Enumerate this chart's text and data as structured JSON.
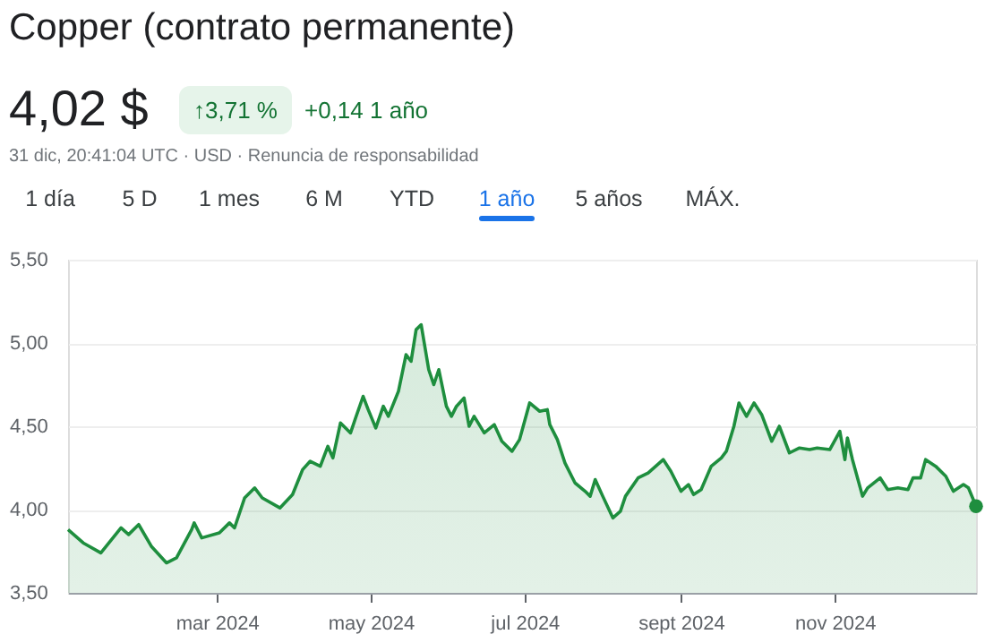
{
  "chart_data": {
    "type": "area",
    "title": "Copper (contrato permanente)",
    "annotations": [
      "4,02 $",
      "↑3,71 %",
      "+0,14 1 año",
      "31 dic, 20:41:04 UTC · USD · Renuncia de responsabilidad",
      "1 día",
      "5 D",
      "1 mes",
      "6 M",
      "YTD",
      "1 año",
      "5 años",
      "MÁX."
    ],
    "x": [
      "2024-01-02",
      "2024-01-08",
      "2024-01-15",
      "2024-01-23",
      "2024-01-26",
      "2024-01-30",
      "2024-02-04",
      "2024-02-10",
      "2024-02-14",
      "2024-02-20",
      "2024-02-21",
      "2024-02-24",
      "2024-03-02",
      "2024-03-06",
      "2024-03-08",
      "2024-03-12",
      "2024-03-16",
      "2024-03-19",
      "2024-03-26",
      "2024-03-31",
      "2024-04-04",
      "2024-04-07",
      "2024-04-11",
      "2024-04-14",
      "2024-04-16",
      "2024-04-19",
      "2024-04-23",
      "2024-04-25",
      "2024-04-28",
      "2024-04-30",
      "2024-05-03",
      "2024-05-06",
      "2024-05-08",
      "2024-05-12",
      "2024-05-15",
      "2024-05-17",
      "2024-05-19",
      "2024-05-21",
      "2024-05-24",
      "2024-05-26",
      "2024-05-28",
      "2024-05-31",
      "2024-06-02",
      "2024-06-04",
      "2024-06-07",
      "2024-06-09",
      "2024-06-11",
      "2024-06-15",
      "2024-06-19",
      "2024-06-22",
      "2024-06-26",
      "2024-06-29",
      "2024-07-03",
      "2024-07-07",
      "2024-07-10",
      "2024-07-11",
      "2024-07-14",
      "2024-07-17",
      "2024-07-21",
      "2024-07-25",
      "2024-07-27",
      "2024-07-29",
      "2024-08-01",
      "2024-08-05",
      "2024-08-08",
      "2024-08-10",
      "2024-08-15",
      "2024-08-19",
      "2024-08-25",
      "2024-08-28",
      "2024-09-01",
      "2024-09-04",
      "2024-09-06",
      "2024-09-09",
      "2024-09-13",
      "2024-09-17",
      "2024-09-19",
      "2024-09-22",
      "2024-09-24",
      "2024-09-27",
      "2024-09-30",
      "2024-10-03",
      "2024-10-07",
      "2024-10-10",
      "2024-10-14",
      "2024-10-18",
      "2024-10-22",
      "2024-10-25",
      "2024-10-30",
      "2024-11-03",
      "2024-11-05",
      "2024-11-06",
      "2024-11-08",
      "2024-11-12",
      "2024-11-14",
      "2024-11-19",
      "2024-11-22",
      "2024-11-26",
      "2024-11-30",
      "2024-12-02",
      "2024-12-05",
      "2024-12-07",
      "2024-12-11",
      "2024-12-15",
      "2024-12-18",
      "2024-12-22",
      "2024-12-24",
      "2024-12-27"
    ],
    "series": [
      {
        "color": "#1e8e3e",
        "values": [
          3.88,
          3.8,
          3.74,
          3.89,
          3.85,
          3.91,
          3.78,
          3.68,
          3.71,
          3.88,
          3.92,
          3.83,
          3.86,
          3.92,
          3.89,
          4.07,
          4.13,
          4.07,
          4.01,
          4.09,
          4.24,
          4.29,
          4.26,
          4.38,
          4.31,
          4.52,
          4.46,
          4.55,
          4.68,
          4.6,
          4.49,
          4.62,
          4.56,
          4.71,
          4.93,
          4.89,
          5.08,
          5.11,
          4.84,
          4.75,
          4.84,
          4.62,
          4.56,
          4.62,
          4.67,
          4.5,
          4.56,
          4.46,
          4.51,
          4.41,
          4.35,
          4.42,
          4.64,
          4.59,
          4.6,
          4.51,
          4.42,
          4.28,
          4.16,
          4.11,
          4.08,
          4.18,
          4.08,
          3.95,
          3.99,
          4.08,
          4.19,
          4.22,
          4.3,
          4.23,
          4.11,
          4.15,
          4.09,
          4.12,
          4.26,
          4.31,
          4.35,
          4.5,
          4.64,
          4.56,
          4.64,
          4.57,
          4.41,
          4.5,
          4.34,
          4.37,
          4.36,
          4.37,
          4.36,
          4.47,
          4.3,
          4.43,
          4.3,
          4.08,
          4.13,
          4.19,
          4.12,
          4.13,
          4.12,
          4.19,
          4.19,
          4.3,
          4.26,
          4.2,
          4.11,
          4.15,
          4.13,
          4.02
        ]
      }
    ],
    "xlim": [
      "2024-01-02",
      "2024-12-27"
    ],
    "xticks": [
      {
        "value": "2024-03-01",
        "label": "mar 2024"
      },
      {
        "value": "2024-05-01",
        "label": "may 2024"
      },
      {
        "value": "2024-07-01",
        "label": "jul 2024"
      },
      {
        "value": "2024-09-01",
        "label": "sept 2024"
      },
      {
        "value": "2024-11-01",
        "label": "nov 2024"
      }
    ],
    "ylim": [
      3.5,
      5.5
    ],
    "yticks": [
      {
        "value": 3.5,
        "label": "3,50"
      },
      {
        "value": 4.0,
        "label": "4,00"
      },
      {
        "value": 4.5,
        "label": "4,50"
      },
      {
        "value": 5.0,
        "label": "5,00"
      },
      {
        "value": 5.5,
        "label": "5,50"
      }
    ],
    "grid": "y",
    "marker": "none",
    "line_style": "solid"
  }
}
